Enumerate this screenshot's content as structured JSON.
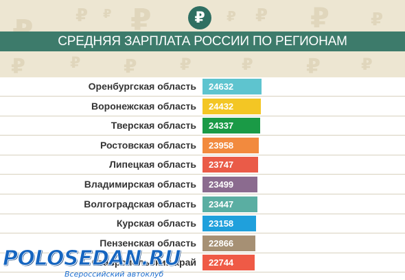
{
  "header": {
    "ruble_symbol": "₽",
    "title": "СРЕДНЯЯ ЗАРПЛАТА РОССИИ ПО РЕГИОНАМ"
  },
  "watermark": {
    "brand": "POLOSEDAN.RU",
    "tagline": "Всероссийский автоклуб"
  },
  "colors": {
    "header_band": "#3d7b6b",
    "ruble_circle": "#2f6f62",
    "header_bg": "#ede6d2"
  },
  "chart_data": {
    "type": "bar",
    "orientation": "horizontal",
    "title": "СРЕДНЯЯ ЗАРПЛАТА РОССИИ ПО РЕГИОНАМ",
    "categories": [
      "Оренбургская область",
      "Воронежская область",
      "Тверская область",
      "Ростовская область",
      "Липецкая область",
      "Владимирская область",
      "Волгоградская область",
      "Курская область",
      "Пензенская область",
      "Ставропольский край"
    ],
    "values": [
      24632,
      24432,
      24337,
      23958,
      23747,
      23499,
      23447,
      23158,
      22866,
      22744
    ],
    "bar_colors": [
      "#5ec4cf",
      "#f3c624",
      "#1a9a46",
      "#f28a3e",
      "#ea5b48",
      "#8b6b8f",
      "#5aaea2",
      "#1fa0dc",
      "#a69074",
      "#ef5a46"
    ],
    "xlim": [
      0,
      24632
    ],
    "data_labels": true,
    "grid": false,
    "legend": "none"
  }
}
